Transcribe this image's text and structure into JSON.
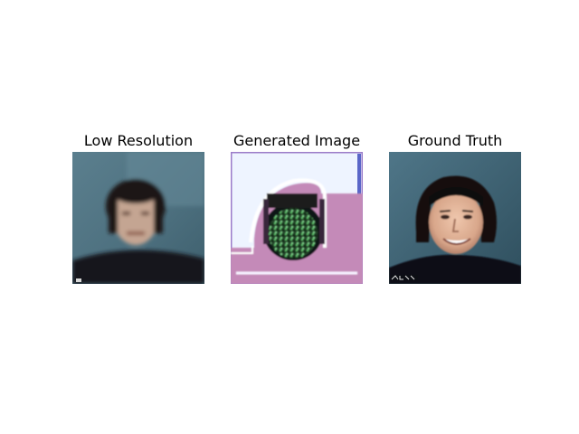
{
  "figure": {
    "panels": [
      {
        "title": "Low Resolution",
        "image": "blurry-low-resolution-face-photo"
      },
      {
        "title": "Generated Image",
        "image": "distorted-generated-face-with-color-artifacts"
      },
      {
        "title": "Ground Truth",
        "image": "smiling-man-dark-hair-photo"
      }
    ]
  }
}
